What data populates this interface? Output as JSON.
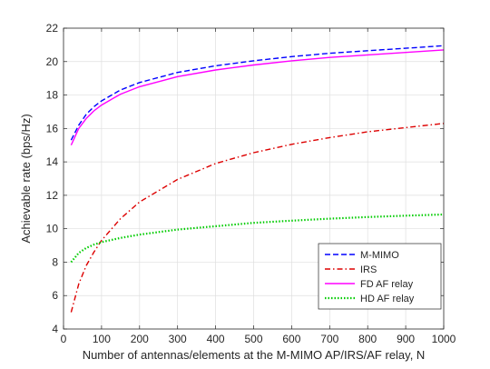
{
  "chart_data": {
    "type": "line",
    "title": "",
    "xlabel": "Number of antennas/elements at the M-MIMO AP/IRS/AF relay, N",
    "ylabel": "Achievable rate (bps/Hz)",
    "xlim": [
      0,
      1000
    ],
    "ylim": [
      4,
      22
    ],
    "xticks": [
      0,
      100,
      200,
      300,
      400,
      500,
      600,
      700,
      800,
      900,
      1000
    ],
    "yticks": [
      4,
      6,
      8,
      10,
      12,
      14,
      16,
      18,
      20,
      22
    ],
    "grid": true,
    "legend_position": "bottom-right",
    "x": [
      20,
      40,
      60,
      80,
      100,
      150,
      200,
      300,
      400,
      500,
      600,
      700,
      800,
      900,
      1000
    ],
    "series": [
      {
        "name": "M-MIMO",
        "color": "#0000ff",
        "dash": "dashed",
        "values": [
          15.3,
          16.2,
          16.85,
          17.3,
          17.65,
          18.3,
          18.75,
          19.35,
          19.75,
          20.05,
          20.3,
          20.5,
          20.65,
          20.8,
          20.95
        ]
      },
      {
        "name": "IRS",
        "color": "#dd0000",
        "dash": "dashdot",
        "values": [
          5.0,
          6.7,
          7.8,
          8.6,
          9.3,
          10.6,
          11.6,
          12.95,
          13.9,
          14.55,
          15.05,
          15.45,
          15.8,
          16.05,
          16.3
        ]
      },
      {
        "name": "FD AF relay",
        "color": "#ff00ff",
        "dash": "solid",
        "values": [
          15.0,
          16.0,
          16.6,
          17.05,
          17.4,
          18.05,
          18.5,
          19.1,
          19.5,
          19.8,
          20.05,
          20.25,
          20.4,
          20.55,
          20.7
        ]
      },
      {
        "name": "HD AF relay",
        "color": "#00cc00",
        "dash": "dotted",
        "values": [
          8.0,
          8.55,
          8.85,
          9.05,
          9.2,
          9.45,
          9.65,
          9.95,
          10.15,
          10.35,
          10.48,
          10.6,
          10.7,
          10.78,
          10.85
        ]
      }
    ]
  }
}
